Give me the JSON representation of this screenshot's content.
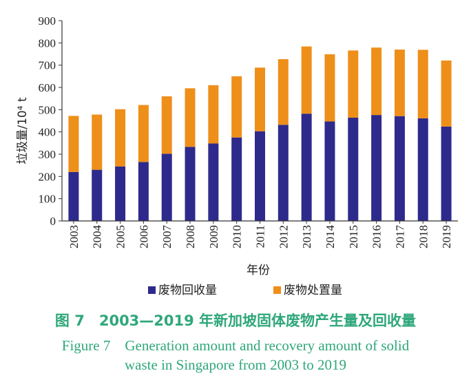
{
  "chart_data": {
    "type": "bar",
    "stacked": true,
    "categories": [
      "2003",
      "2004",
      "2005",
      "2006",
      "2007",
      "2008",
      "2009",
      "2010",
      "2011",
      "2012",
      "2013",
      "2014",
      "2015",
      "2016",
      "2017",
      "2018",
      "2019"
    ],
    "series": [
      {
        "name": "废物回收量",
        "color": "#2e2a8c",
        "values": [
          220,
          230,
          245,
          265,
          302,
          333,
          348,
          375,
          403,
          432,
          482,
          447,
          464,
          476,
          471,
          461,
          424
        ]
      },
      {
        "name": "废物处置量",
        "color": "#ee8f1a",
        "values": [
          252,
          248,
          257,
          256,
          258,
          263,
          262,
          275,
          286,
          295,
          302,
          302,
          302,
          303,
          299,
          308,
          297
        ]
      }
    ],
    "xlabel": "年份",
    "ylabel": "垃圾量/10⁴ t",
    "ylim": [
      0,
      900
    ],
    "yticks": [
      "0",
      "100",
      "200",
      "300",
      "400",
      "500",
      "600",
      "700",
      "800",
      "900"
    ],
    "legend_position": "bottom",
    "grid": false
  },
  "caption": {
    "cn": "图 7　2003—2019 年新加坡固体废物产生量及回收量",
    "en_line1": "Figure 7　Generation amount and recovery amount of solid",
    "en_line2": "waste in Singapore from 2003 to 2019"
  }
}
